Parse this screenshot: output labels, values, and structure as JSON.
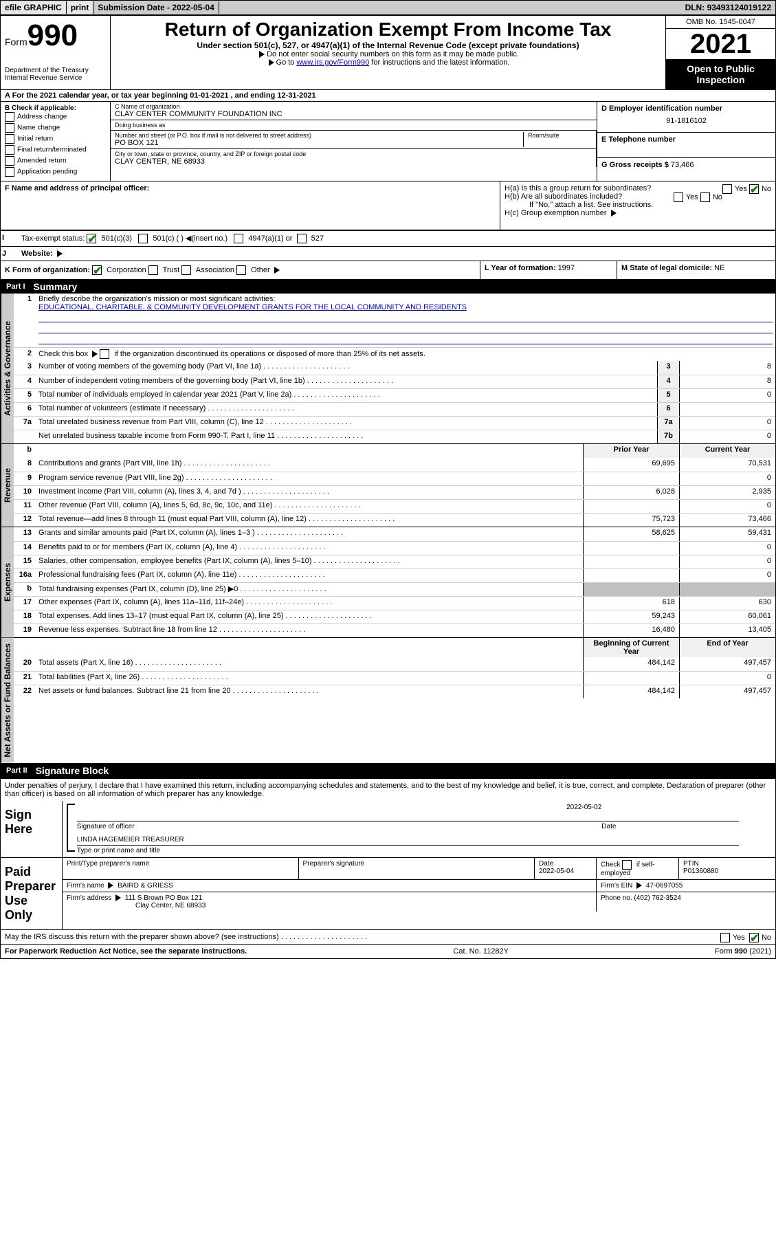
{
  "topbar": {
    "efile": "efile GRAPHIC",
    "print": "print",
    "subdate_label": "Submission Date - ",
    "subdate": "2022-05-04",
    "dln_label": "DLN: ",
    "dln": "93493124019122"
  },
  "header": {
    "form_label": "Form",
    "form_num": "990",
    "dept": "Department of the Treasury",
    "irs": "Internal Revenue Service",
    "title": "Return of Organization Exempt From Income Tax",
    "subtitle": "Under section 501(c), 527, or 4947(a)(1) of the Internal Revenue Code (except private foundations)",
    "note1": "Do not enter social security numbers on this form as it may be made public.",
    "note2_pre": "Go to ",
    "note2_link": "www.irs.gov/Form990",
    "note2_post": " for instructions and the latest information.",
    "omb": "OMB No. 1545-0047",
    "year": "2021",
    "open": "Open to Public Inspection"
  },
  "sectionA": {
    "text": "A For the 2021 calendar year, or tax year beginning 01-01-2021   , and ending 12-31-2021"
  },
  "sectionB": {
    "label": "B Check if applicable:",
    "items": [
      "Address change",
      "Name change",
      "Initial return",
      "Final return/terminated",
      "Amended return",
      "Application pending"
    ]
  },
  "sectionC": {
    "name_label": "C Name of organization",
    "name": "CLAY CENTER COMMUNITY FOUNDATION INC",
    "dba_label": "Doing business as",
    "dba": "",
    "street_label": "Number and street (or P.O. box if mail is not delivered to street address)",
    "street": "PO BOX 121",
    "room_label": "Room/suite",
    "city_label": "City or town, state or province, country, and ZIP or foreign postal code",
    "city": "CLAY CENTER, NE  68933"
  },
  "sectionD": {
    "label": "D Employer identification number",
    "val": "91-1816102"
  },
  "sectionE": {
    "label": "E Telephone number",
    "val": ""
  },
  "sectionG": {
    "label": "G Gross receipts $",
    "val": "73,466"
  },
  "sectionF": {
    "label": "F Name and address of principal officer:",
    "val": ""
  },
  "sectionH": {
    "a": "H(a)  Is this a group return for subordinates?",
    "b": "H(b)  Are all subordinates included?",
    "b_note": "If \"No,\" attach a list. See instructions.",
    "c": "H(c)  Group exemption number",
    "yes": "Yes",
    "no": "No"
  },
  "sectionI": {
    "label": "Tax-exempt status:",
    "opt1": "501(c)(3)",
    "opt2": "501(c) (  )",
    "opt2_note": "(insert no.)",
    "opt3": "4947(a)(1) or",
    "opt4": "527"
  },
  "sectionJ": {
    "label": "Website:",
    "val": ""
  },
  "sectionK": {
    "label": "K Form of organization:",
    "opts": [
      "Corporation",
      "Trust",
      "Association",
      "Other"
    ]
  },
  "sectionL": {
    "label": "L Year of formation: ",
    "val": "1997"
  },
  "sectionM": {
    "label": "M State of legal domicile: ",
    "val": "NE"
  },
  "part1": {
    "num": "Part I",
    "title": "Summary",
    "tab_activities": "Activities & Governance",
    "tab_revenue": "Revenue",
    "tab_expenses": "Expenses",
    "tab_net": "Net Assets or Fund Balances",
    "line1_label": "Briefly describe the organization's mission or most significant activities:",
    "line1_val": "EDUCATIONAL, CHARITABLE, & COMMUNITY DEVELOPMENT GRANTS FOR THE LOCAL COMMUNITY AND RESIDENTS",
    "line2": "Check this box      if the organization discontinued its operations or disposed of more than 25% of its net assets.",
    "lines_ag": [
      {
        "n": "3",
        "d": "Number of voting members of the governing body (Part VI, line 1a)",
        "b": "3",
        "v": "8"
      },
      {
        "n": "4",
        "d": "Number of independent voting members of the governing body (Part VI, line 1b)",
        "b": "4",
        "v": "8"
      },
      {
        "n": "5",
        "d": "Total number of individuals employed in calendar year 2021 (Part V, line 2a)",
        "b": "5",
        "v": "0"
      },
      {
        "n": "6",
        "d": "Total number of volunteers (estimate if necessary)",
        "b": "6",
        "v": ""
      },
      {
        "n": "7a",
        "d": "Total unrelated business revenue from Part VIII, column (C), line 12",
        "b": "7a",
        "v": "0"
      },
      {
        "n": "",
        "d": "Net unrelated business taxable income from Form 990-T, Part I, line 11",
        "b": "7b",
        "v": "0"
      }
    ],
    "hdr_prior": "Prior Year",
    "hdr_current": "Current Year",
    "lines_rev": [
      {
        "n": "8",
        "d": "Contributions and grants (Part VIII, line 1h)",
        "p": "69,695",
        "c": "70,531"
      },
      {
        "n": "9",
        "d": "Program service revenue (Part VIII, line 2g)",
        "p": "",
        "c": "0"
      },
      {
        "n": "10",
        "d": "Investment income (Part VIII, column (A), lines 3, 4, and 7d )",
        "p": "6,028",
        "c": "2,935"
      },
      {
        "n": "11",
        "d": "Other revenue (Part VIII, column (A), lines 5, 6d, 8c, 9c, 10c, and 11e)",
        "p": "",
        "c": "0"
      },
      {
        "n": "12",
        "d": "Total revenue—add lines 8 through 11 (must equal Part VIII, column (A), line 12)",
        "p": "75,723",
        "c": "73,466"
      }
    ],
    "lines_exp": [
      {
        "n": "13",
        "d": "Grants and similar amounts paid (Part IX, column (A), lines 1–3 )",
        "p": "58,625",
        "c": "59,431"
      },
      {
        "n": "14",
        "d": "Benefits paid to or for members (Part IX, column (A), line 4)",
        "p": "",
        "c": "0"
      },
      {
        "n": "15",
        "d": "Salaries, other compensation, employee benefits (Part IX, column (A), lines 5–10)",
        "p": "",
        "c": "0"
      },
      {
        "n": "16a",
        "d": "Professional fundraising fees (Part IX, column (A), line 11e)",
        "p": "",
        "c": "0"
      },
      {
        "n": "b",
        "d": "Total fundraising expenses (Part IX, column (D), line 25) ▶0",
        "p": "",
        "c": "",
        "shaded": true
      },
      {
        "n": "17",
        "d": "Other expenses (Part IX, column (A), lines 11a–11d, 11f–24e)",
        "p": "618",
        "c": "630"
      },
      {
        "n": "18",
        "d": "Total expenses. Add lines 13–17 (must equal Part IX, column (A), line 25)",
        "p": "59,243",
        "c": "60,061"
      },
      {
        "n": "19",
        "d": "Revenue less expenses. Subtract line 18 from line 12",
        "p": "16,480",
        "c": "13,405"
      }
    ],
    "hdr_begin": "Beginning of Current Year",
    "hdr_end": "End of Year",
    "lines_net": [
      {
        "n": "20",
        "d": "Total assets (Part X, line 16)",
        "p": "484,142",
        "c": "497,457"
      },
      {
        "n": "21",
        "d": "Total liabilities (Part X, line 26)",
        "p": "",
        "c": "0"
      },
      {
        "n": "22",
        "d": "Net assets or fund balances. Subtract line 21 from line 20",
        "p": "484,142",
        "c": "497,457"
      }
    ]
  },
  "part2": {
    "num": "Part II",
    "title": "Signature Block",
    "decl": "Under penalties of perjury, I declare that I have examined this return, including accompanying schedules and statements, and to the best of my knowledge and belief, it is true, correct, and complete. Declaration of preparer (other than officer) is based on all information of which preparer has any knowledge.",
    "sign_here": "Sign Here",
    "sig_officer": "Signature of officer",
    "sig_date": "Date",
    "sig_date_val": "2022-05-02",
    "name_title": "LINDA HAGEMEIER  TREASURER",
    "name_title_label": "Type or print name and title",
    "paid": "Paid Preparer Use Only",
    "prep_name_label": "Print/Type preparer's name",
    "prep_name": "",
    "prep_sig_label": "Preparer's signature",
    "prep_date_label": "Date",
    "prep_date": "2022-05-04",
    "self_emp": "Check        if self-employed",
    "ptin_label": "PTIN",
    "ptin": "P01360880",
    "firm_name_label": "Firm's name     ",
    "firm_name": "BAIRD & GRIESS",
    "firm_ein_label": "Firm's EIN ",
    "firm_ein": "47-0697055",
    "firm_addr_label": "Firm's address ",
    "firm_addr1": "111 S Brown PO Box 121",
    "firm_addr2": "Clay Center, NE  68933",
    "firm_phone_label": "Phone no. ",
    "firm_phone": "(402) 762-3524",
    "discuss": "May the IRS discuss this return with the preparer shown above? (see instructions)",
    "yes": "Yes",
    "no": "No"
  },
  "footer": {
    "left": "For Paperwork Reduction Act Notice, see the separate instructions.",
    "mid": "Cat. No. 11282Y",
    "right": "Form 990 (2021)"
  },
  "colors": {
    "link": "#0000cc",
    "check": "#1a7a1a",
    "headerbg": "#000000",
    "shaded": "#c0c0c0",
    "topbar": "#cccccc"
  }
}
